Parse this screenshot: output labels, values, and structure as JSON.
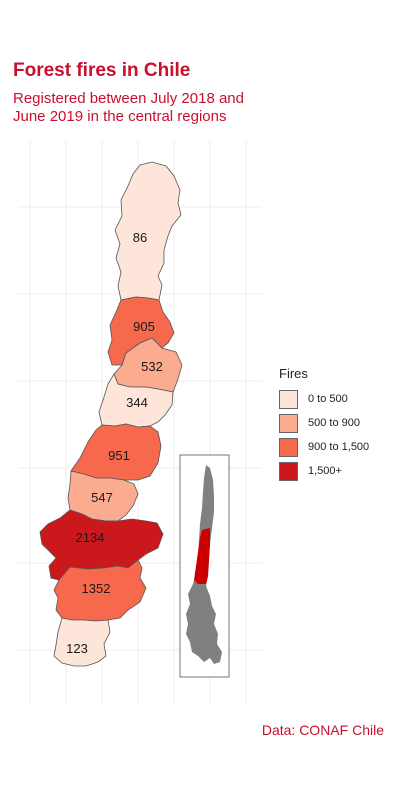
{
  "title": "Forest fires in Chile",
  "subtitle": "Registered between July 2018 and June 2019 in the central regions",
  "caption": "Data: CONAF Chile",
  "legend": {
    "title": "Fires",
    "items": [
      {
        "label": "0 to 500",
        "color": "#fde5da"
      },
      {
        "label": "500 to 900",
        "color": "#fbab8f"
      },
      {
        "label": "900 to 1,500",
        "color": "#f7694c"
      },
      {
        "label": "1,500+",
        "color": "#cb181d"
      }
    ]
  },
  "regions": [
    {
      "name": "region-1",
      "fires": "86",
      "color": "#fde5da"
    },
    {
      "name": "region-2",
      "fires": "905",
      "color": "#f7694c"
    },
    {
      "name": "region-3",
      "fires": "532",
      "color": "#fbab8f"
    },
    {
      "name": "region-4",
      "fires": "344",
      "color": "#fde5da"
    },
    {
      "name": "region-5",
      "fires": "951",
      "color": "#f7694c"
    },
    {
      "name": "region-6",
      "fires": "547",
      "color": "#fbab8f"
    },
    {
      "name": "region-7",
      "fires": "2134",
      "color": "#cb181d"
    },
    {
      "name": "region-8",
      "fires": "1352",
      "color": "#f7694c"
    },
    {
      "name": "region-9",
      "fires": "123",
      "color": "#fde5da"
    }
  ],
  "inset": {
    "country_color": "#808080",
    "highlight_color": "#cc0000"
  }
}
